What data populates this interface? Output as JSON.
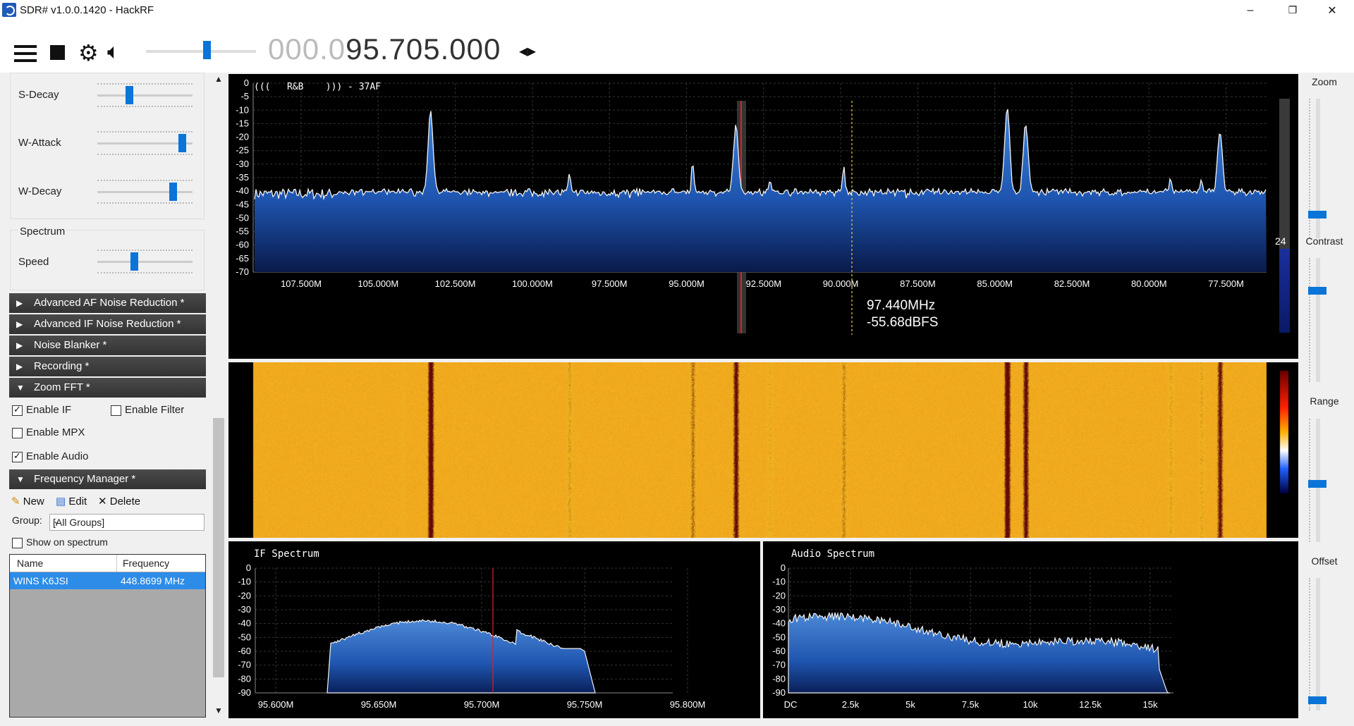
{
  "window": {
    "title": "SDR# v1.0.0.1420 - HackRF",
    "minimize": "–",
    "restore": "❐",
    "close": "✕"
  },
  "toolbar": {
    "menu_icon": "hamburger-icon",
    "stop_icon": "stop-icon",
    "settings_icon": "gear-icon",
    "audio_icon": "speaker-icon",
    "volume_level": 0.56,
    "frequency_dim": "000.0",
    "frequency_main": "95.705.000",
    "step_icon": "◂▸"
  },
  "left_panel": {
    "sliders": [
      {
        "label": "S-Decay",
        "value": 0.32
      },
      {
        "label": "W-Attack",
        "value": 0.93
      },
      {
        "label": "W-Decay",
        "value": 0.82
      }
    ],
    "spectrum_group": {
      "title": "Spectrum",
      "speed_label": "Speed",
      "speed_value": 0.38
    },
    "sections": [
      {
        "label": "Advanced AF Noise Reduction *",
        "expanded": false
      },
      {
        "label": "Advanced IF Noise Reduction *",
        "expanded": false
      },
      {
        "label": "Noise Blanker *",
        "expanded": false
      },
      {
        "label": "Recording *",
        "expanded": false
      },
      {
        "label": "Zoom FFT *",
        "expanded": true
      }
    ],
    "zoom_fft": {
      "enable_if": {
        "label": "Enable IF",
        "checked": true
      },
      "enable_filter": {
        "label": "Enable Filter",
        "checked": false
      },
      "enable_mpx": {
        "label": "Enable MPX",
        "checked": false
      },
      "enable_audio": {
        "label": "Enable Audio",
        "checked": true
      }
    },
    "frequency_manager": {
      "header": "Frequency Manager *",
      "new_label": "New",
      "edit_label": "Edit",
      "delete_label": "Delete",
      "group_label": "Group:",
      "group_value": "[All Groups]",
      "show_on_spectrum": {
        "label": "Show on spectrum",
        "checked": false
      },
      "columns": [
        "Name",
        "Frequency"
      ],
      "rows": [
        {
          "name": "WINS K6JSI",
          "frequency": "448.8699 MHz"
        }
      ]
    }
  },
  "spectrum": {
    "rds": "(((   R&B    ))) - 37AF",
    "y_ticks": [
      "0",
      "-5",
      "-10",
      "-15",
      "-20",
      "-25",
      "-30",
      "-35",
      "-40",
      "-45",
      "-50",
      "-55",
      "-60",
      "-65",
      "-70"
    ],
    "x_ticks": [
      "107.500M",
      "105.000M",
      "102.500M",
      "100.000M",
      "97.500M",
      "95.000M",
      "92.500M",
      "90.000M",
      "87.500M",
      "85.000M",
      "82.500M",
      "80.000M",
      "77.500M"
    ],
    "cursor_freq": "97.440MHz",
    "cursor_level": "-55.68dBFS",
    "scale_value": "24",
    "chart_data": {
      "type": "area",
      "x_unit": "MHz",
      "ylim": [
        -70,
        0
      ],
      "noise_floor": -41,
      "peaks": [
        {
          "x": 104.2,
          "y": -39
        },
        {
          "x": 103.3,
          "y": -10
        },
        {
          "x": 98.8,
          "y": -34
        },
        {
          "x": 94.8,
          "y": -29
        },
        {
          "x": 93.4,
          "y": -16
        },
        {
          "x": 92.3,
          "y": -36
        },
        {
          "x": 89.9,
          "y": -31
        },
        {
          "x": 84.6,
          "y": -9
        },
        {
          "x": 84.0,
          "y": -15
        },
        {
          "x": 79.3,
          "y": -35
        },
        {
          "x": 78.3,
          "y": -35
        },
        {
          "x": 77.7,
          "y": -18
        }
      ]
    }
  },
  "if_spectrum": {
    "title": "IF Spectrum",
    "y_ticks": [
      "0",
      "-10",
      "-20",
      "-30",
      "-40",
      "-50",
      "-60",
      "-70",
      "-80",
      "-90"
    ],
    "x_ticks": [
      "95.600M",
      "95.650M",
      "95.700M",
      "95.750M",
      "95.800M"
    ]
  },
  "audio_spectrum": {
    "title": "Audio Spectrum",
    "y_ticks": [
      "0",
      "-10",
      "-20",
      "-30",
      "-40",
      "-50",
      "-60",
      "-70",
      "-80",
      "-90"
    ],
    "x_ticks": [
      "DC",
      "2.5k",
      "5k",
      "7.5k",
      "10k",
      "12.5k",
      "15k"
    ]
  },
  "right_panel": {
    "zoom_label": "Zoom",
    "zoom_value": 0.85,
    "contrast_label": "Contrast",
    "contrast_value": 0.25,
    "range_label": "Range",
    "range_value": 0.53,
    "offset_label": "Offset",
    "offset_value": 0.95
  },
  "colors": {
    "accent": "#0a74d8",
    "selection": "#2d8ce8",
    "spectrum_fill": "#1f6ed4",
    "waterfall_base": "#f2a01e"
  }
}
